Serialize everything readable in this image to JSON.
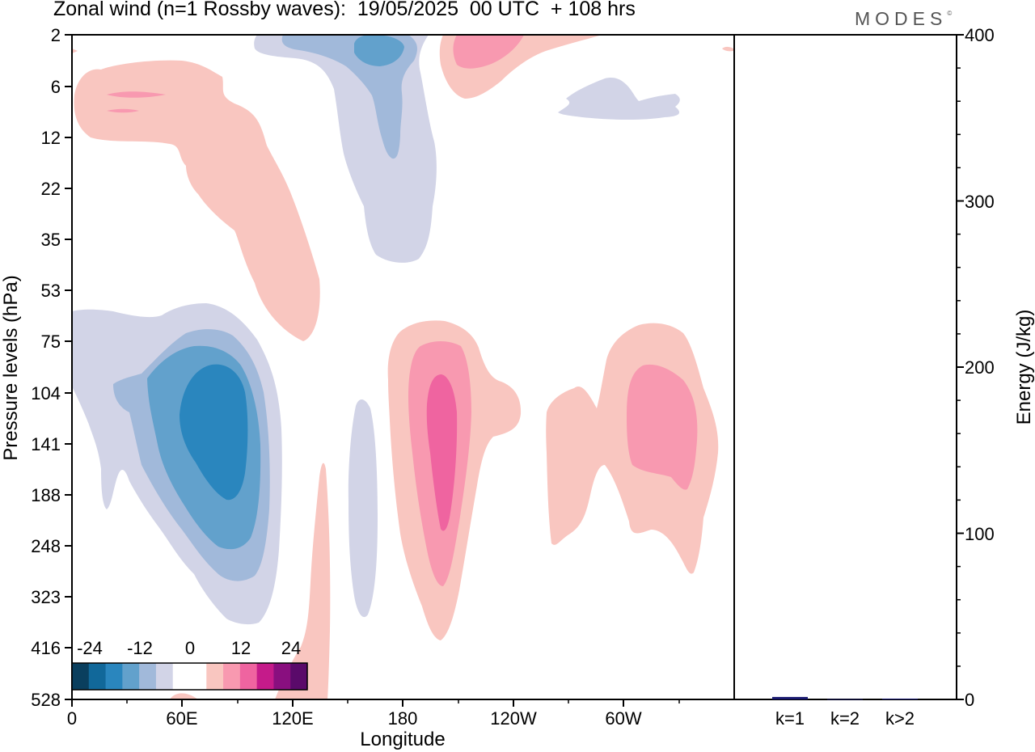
{
  "header": {
    "title": "Zonal wind (n=1 Rossby waves):  19/05/2025  00 UTC  + 108 hrs",
    "brand": "MODES",
    "brand_mark": "©"
  },
  "chart_data": [
    {
      "type": "heatmap",
      "name": "zonal-wind-cross-section",
      "xlabel": "Longitude",
      "ylabel": "Pressure levels (hPa)",
      "x_ticks": [
        "0",
        "60E",
        "120E",
        "180",
        "120W",
        "60W"
      ],
      "y_ticks": [
        "2",
        "6",
        "12",
        "22",
        "35",
        "53",
        "75",
        "104",
        "141",
        "188",
        "248",
        "323",
        "416",
        "528"
      ],
      "colorbar": {
        "labels": [
          "-24",
          "-12",
          "0",
          "12",
          "24"
        ],
        "levels": [
          -30,
          -25,
          -20,
          -15,
          -10,
          -5,
          0,
          5,
          10,
          15,
          20,
          25,
          30
        ],
        "colors": [
          "#0a3f5e",
          "#11689a",
          "#2a86be",
          "#62a1cc",
          "#a1b9da",
          "#d2d4e7",
          "#ffffff",
          "#ffffff",
          "#f9c6c0",
          "#f899b0",
          "#ef64a0",
          "#c51b8a",
          "#890f7f",
          "#5a0a6a"
        ]
      },
      "features": [
        {
          "sign": "negative",
          "max_level": -25,
          "longitude_center": 80,
          "pressure_center_hPa": 141
        },
        {
          "sign": "negative",
          "max_level": -15,
          "longitude_center": 165,
          "pressure_center_hPa": 3
        },
        {
          "sign": "negative",
          "max_level": -5,
          "longitude_center": 157,
          "pressure_center_hPa": 188
        },
        {
          "sign": "negative",
          "max_level": -5,
          "longitude_center": 270,
          "pressure_center_hPa": 8
        },
        {
          "sign": "positive",
          "max_level": 15,
          "longitude_center": 200,
          "pressure_center_hPa": 141
        },
        {
          "sign": "positive",
          "max_level": 10,
          "longitude_center": 320,
          "pressure_center_hPa": 125
        },
        {
          "sign": "positive",
          "max_level": 10,
          "longitude_center": 225,
          "pressure_center_hPa": 3
        },
        {
          "sign": "positive",
          "max_level": 5,
          "longitude_center": 90,
          "pressure_center_hPa": 20
        },
        {
          "sign": "positive",
          "max_level": 5,
          "longitude_center": 135,
          "pressure_center_hPa": 416
        }
      ]
    },
    {
      "type": "bar",
      "name": "energy",
      "ylabel": "Energy (J/kg)",
      "categories": [
        "k=1",
        "k=2",
        "k>2"
      ],
      "values": [
        1.5,
        0.2,
        0.5
      ],
      "ylim": [
        0,
        400
      ],
      "y_ticks": [
        "0",
        "100",
        "200",
        "300",
        "400"
      ],
      "bar_color": "#191970"
    }
  ]
}
